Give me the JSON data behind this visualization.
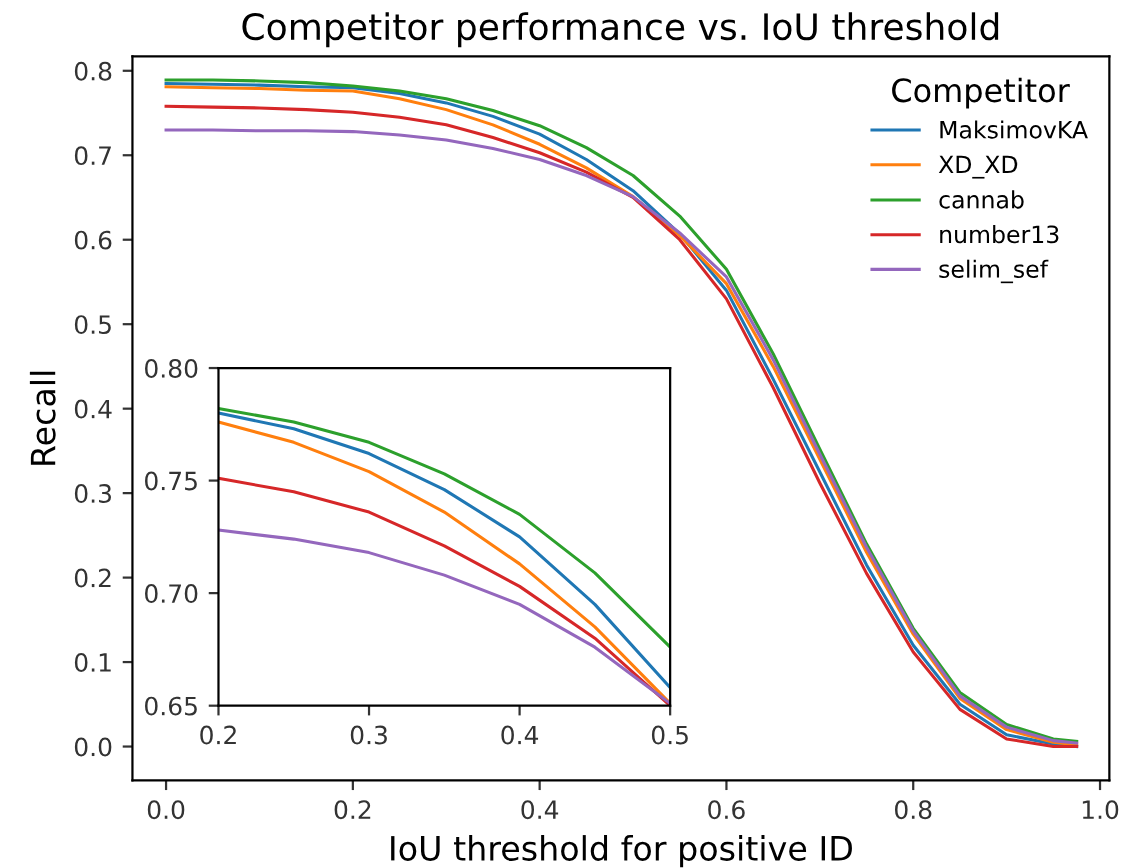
{
  "chart_data": [
    {
      "type": "line",
      "title": "Competitor performance vs. IoU threshold",
      "xlabel": "IoU threshold for positive ID",
      "ylabel": "Recall",
      "legend_title": "Competitor",
      "legend": "top right",
      "grid": false,
      "x": [
        0,
        0.05,
        0.1,
        0.15,
        0.2,
        0.25,
        0.3,
        0.35,
        0.4,
        0.45,
        0.5,
        0.55,
        0.6,
        0.65,
        0.7,
        0.75,
        0.8,
        0.85,
        0.9,
        0.95,
        0.975
      ],
      "xlim": [
        -0.036,
        1.01
      ],
      "ylim": [
        -0.04,
        0.817
      ],
      "xticks": [
        {
          "value": 0,
          "label": "0.0"
        },
        0.2,
        0.4,
        0.6,
        0.8,
        {
          "value": 1,
          "label": "1.0"
        }
      ],
      "yticks": [
        {
          "value": 0,
          "label": "0.0"
        },
        0.1,
        0.2,
        0.3,
        0.4,
        0.5,
        0.6,
        0.7,
        0.8
      ],
      "series": [
        {
          "name": "MaksimovKA",
          "color": "#1f77b4",
          "values": [
            0.785,
            0.784,
            0.783,
            0.781,
            0.78,
            0.773,
            0.762,
            0.746,
            0.725,
            0.695,
            0.658,
            0.607,
            0.54,
            0.435,
            0.325,
            0.215,
            0.12,
            0.05,
            0.014,
            0.003,
            0.0
          ]
        },
        {
          "name": "XD_XD",
          "color": "#ff7f0e",
          "values": [
            0.781,
            0.78,
            0.779,
            0.777,
            0.776,
            0.767,
            0.754,
            0.736,
            0.713,
            0.685,
            0.651,
            0.605,
            0.548,
            0.45,
            0.34,
            0.23,
            0.133,
            0.057,
            0.02,
            0.005,
            0.002
          ]
        },
        {
          "name": "cannab",
          "color": "#2ca02c",
          "values": [
            0.789,
            0.789,
            0.788,
            0.786,
            0.782,
            0.776,
            0.767,
            0.753,
            0.735,
            0.709,
            0.676,
            0.628,
            0.565,
            0.465,
            0.352,
            0.24,
            0.14,
            0.064,
            0.026,
            0.009,
            0.006
          ]
        },
        {
          "name": "number13",
          "color": "#d62728",
          "values": [
            0.758,
            0.757,
            0.756,
            0.754,
            0.751,
            0.745,
            0.736,
            0.721,
            0.703,
            0.68,
            0.65,
            0.6,
            0.53,
            0.425,
            0.312,
            0.205,
            0.112,
            0.044,
            0.009,
            0.0,
            0.0
          ]
        },
        {
          "name": "selim_sef",
          "color": "#9467bd",
          "values": [
            0.73,
            0.73,
            0.729,
            0.729,
            0.728,
            0.724,
            0.718,
            0.708,
            0.695,
            0.676,
            0.651,
            0.608,
            0.556,
            0.458,
            0.346,
            0.236,
            0.137,
            0.06,
            0.023,
            0.007,
            0.004
          ]
        }
      ]
    },
    {
      "type": "line",
      "grid": false,
      "x": [
        0.2,
        0.25,
        0.3,
        0.35,
        0.4,
        0.45,
        0.5
      ],
      "xlim": [
        0.2,
        0.5
      ],
      "ylim": [
        0.65,
        0.8
      ],
      "xticks": [
        0.2,
        0.3,
        0.4,
        0.5
      ],
      "yticks": [
        0.65,
        {
          "value": 0.7,
          "label": "0.70"
        },
        0.75,
        {
          "value": 0.8,
          "label": "0.80"
        }
      ],
      "series": [
        {
          "color": "#1f77b4",
          "values": [
            0.78,
            0.773,
            0.762,
            0.746,
            0.725,
            0.695,
            0.658
          ]
        },
        {
          "color": "#ff7f0e",
          "values": [
            0.776,
            0.767,
            0.754,
            0.736,
            0.713,
            0.685,
            0.651
          ]
        },
        {
          "color": "#2ca02c",
          "values": [
            0.782,
            0.776,
            0.767,
            0.753,
            0.735,
            0.709,
            0.676
          ]
        },
        {
          "color": "#d62728",
          "values": [
            0.751,
            0.745,
            0.736,
            0.721,
            0.703,
            0.68,
            0.65
          ]
        },
        {
          "color": "#9467bd",
          "values": [
            0.728,
            0.724,
            0.718,
            0.708,
            0.695,
            0.676,
            0.651
          ]
        }
      ]
    }
  ]
}
